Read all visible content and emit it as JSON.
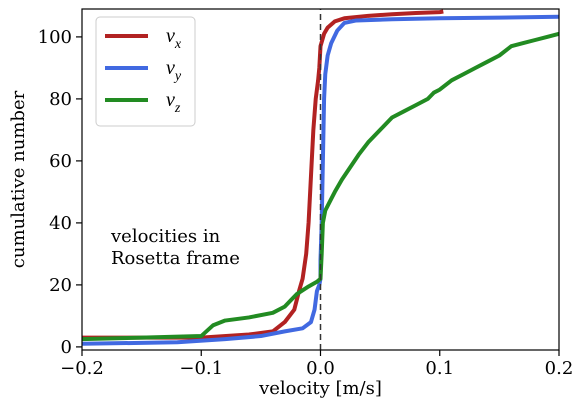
{
  "chart_data": {
    "type": "line",
    "title": "",
    "xlabel": "velocity [m/s]",
    "ylabel": "cumulative number",
    "xlim": [
      -0.2,
      0.2
    ],
    "ylim": [
      -1,
      109
    ],
    "xticks": [
      -0.2,
      -0.1,
      0.0,
      0.1,
      0.2
    ],
    "xtick_labels": [
      "−0.2",
      "−0.1",
      "0.0",
      "0.1",
      "0.2"
    ],
    "yticks": [
      0,
      20,
      40,
      60,
      80,
      100
    ],
    "ytick_labels": [
      "0",
      "20",
      "40",
      "60",
      "80",
      "100"
    ],
    "grid": false,
    "legend": "top-left",
    "annotation": [
      "velocities in",
      "Rosetta frame"
    ],
    "vline": {
      "x": 0.0,
      "style": "dashed"
    },
    "series": [
      {
        "name": "v_x",
        "label_base": "v",
        "label_sub": "x",
        "color": "#b22222",
        "points": [
          [
            -0.2,
            3
          ],
          [
            -0.1,
            3
          ],
          [
            -0.06,
            4
          ],
          [
            -0.04,
            5
          ],
          [
            -0.03,
            8
          ],
          [
            -0.022,
            12
          ],
          [
            -0.018,
            18
          ],
          [
            -0.015,
            22
          ],
          [
            -0.012,
            30
          ],
          [
            -0.01,
            40
          ],
          [
            -0.008,
            55
          ],
          [
            -0.006,
            70
          ],
          [
            -0.004,
            80
          ],
          [
            -0.002,
            86
          ],
          [
            -0.001,
            90
          ],
          [
            0.0,
            97
          ],
          [
            0.003,
            101
          ],
          [
            0.006,
            103
          ],
          [
            0.012,
            105
          ],
          [
            0.02,
            106
          ],
          [
            0.04,
            106.8
          ],
          [
            0.06,
            107.3
          ],
          [
            0.08,
            107.7
          ],
          [
            0.1,
            108.0
          ],
          [
            0.103,
            108.2
          ]
        ]
      },
      {
        "name": "v_y",
        "label_base": "v",
        "label_sub": "y",
        "color": "#4169e1",
        "points": [
          [
            -0.2,
            1
          ],
          [
            -0.12,
            1.5
          ],
          [
            -0.08,
            2.5
          ],
          [
            -0.05,
            3.5
          ],
          [
            -0.03,
            5
          ],
          [
            -0.015,
            6
          ],
          [
            -0.008,
            8
          ],
          [
            -0.005,
            12
          ],
          [
            -0.003,
            18
          ],
          [
            -0.001,
            20
          ],
          [
            0.0,
            22
          ],
          [
            0.0,
            28
          ],
          [
            0.001,
            40
          ],
          [
            0.002,
            60
          ],
          [
            0.003,
            80
          ],
          [
            0.004,
            88
          ],
          [
            0.006,
            94
          ],
          [
            0.009,
            98
          ],
          [
            0.014,
            102
          ],
          [
            0.02,
            104.5
          ],
          [
            0.03,
            105.3
          ],
          [
            0.06,
            105.7
          ],
          [
            0.1,
            106.0
          ],
          [
            0.15,
            106.2
          ],
          [
            0.2,
            106.5
          ]
        ]
      },
      {
        "name": "v_z",
        "label_base": "v",
        "label_sub": "z",
        "color": "#228b22",
        "points": [
          [
            -0.2,
            2.5
          ],
          [
            -0.15,
            3
          ],
          [
            -0.1,
            3.5
          ],
          [
            -0.09,
            7
          ],
          [
            -0.08,
            8.5
          ],
          [
            -0.06,
            9.5
          ],
          [
            -0.04,
            11
          ],
          [
            -0.03,
            13
          ],
          [
            -0.025,
            15
          ],
          [
            -0.02,
            17
          ],
          [
            -0.01,
            19.5
          ],
          [
            -0.003,
            21
          ],
          [
            0.0,
            22
          ],
          [
            0.001,
            30
          ],
          [
            0.002,
            40
          ],
          [
            0.004,
            44
          ],
          [
            0.008,
            47
          ],
          [
            0.012,
            50
          ],
          [
            0.018,
            54
          ],
          [
            0.025,
            58
          ],
          [
            0.032,
            62
          ],
          [
            0.04,
            66
          ],
          [
            0.05,
            70
          ],
          [
            0.06,
            74
          ],
          [
            0.07,
            76
          ],
          [
            0.08,
            78
          ],
          [
            0.09,
            80
          ],
          [
            0.095,
            82
          ],
          [
            0.1,
            83
          ],
          [
            0.11,
            86
          ],
          [
            0.12,
            88
          ],
          [
            0.13,
            90
          ],
          [
            0.14,
            92
          ],
          [
            0.15,
            94
          ],
          [
            0.16,
            97
          ],
          [
            0.17,
            98
          ],
          [
            0.18,
            99
          ],
          [
            0.19,
            100
          ],
          [
            0.2,
            101
          ]
        ]
      }
    ]
  }
}
